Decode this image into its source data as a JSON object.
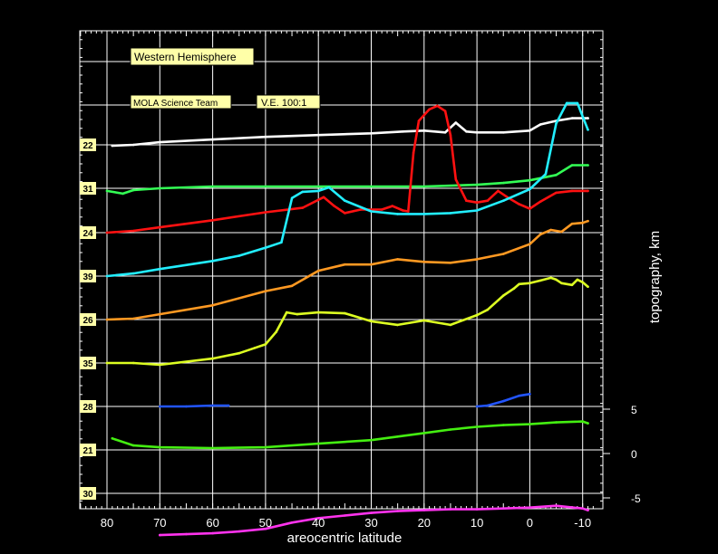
{
  "chart_data": {
    "type": "line",
    "title": "Western Hemisphere",
    "annotations": [
      "MOLA Science Team",
      "V.E. 100:1"
    ],
    "xlabel": "areocentric latitude",
    "ylabel": "topography, km",
    "xlim": [
      85,
      -12
    ],
    "x_ticks": [
      "80",
      "70",
      "60",
      "50",
      "40",
      "30",
      "20",
      "10",
      "0",
      "-10"
    ],
    "y_ticks": [
      "5",
      "0",
      "-5"
    ],
    "grid": true,
    "series": [
      {
        "name": "22",
        "color": "#ffffff",
        "x": [
          79,
          75,
          70,
          60,
          50,
          40,
          30,
          24,
          20,
          16,
          14,
          12,
          10,
          5,
          0,
          -2,
          -5,
          -8,
          -11
        ],
        "y": [
          -0.1,
          0.0,
          0.3,
          0.6,
          0.9,
          1.1,
          1.3,
          1.5,
          1.6,
          1.4,
          2.5,
          1.5,
          1.4,
          1.4,
          1.6,
          2.3,
          2.7,
          3.0,
          3.0
        ]
      },
      {
        "name": "31",
        "color": "#33ff55",
        "x": [
          80,
          77,
          75,
          70,
          60,
          50,
          40,
          30,
          20,
          10,
          5,
          0,
          -5,
          -8,
          -11
        ],
        "y": [
          -0.3,
          -0.6,
          -0.2,
          0.0,
          0.2,
          0.2,
          0.2,
          0.2,
          0.2,
          0.4,
          0.6,
          0.9,
          1.5,
          2.6,
          2.6
        ]
      },
      {
        "name": "24",
        "color": "#ff1111",
        "x": [
          80,
          75,
          70,
          60,
          50,
          43,
          39,
          37,
          35,
          32,
          30,
          28,
          26,
          24,
          23,
          22,
          21,
          19,
          17.5,
          16,
          15,
          14,
          12,
          10,
          8,
          6,
          4,
          2,
          0,
          -2,
          -5,
          -8,
          -11
        ],
        "y": [
          0.0,
          0.2,
          0.6,
          1.4,
          2.3,
          2.8,
          4.0,
          3.0,
          2.2,
          2.6,
          2.6,
          2.6,
          3.0,
          2.5,
          2.4,
          9.0,
          12.6,
          13.9,
          14.3,
          13.7,
          11.0,
          6.0,
          3.6,
          3.4,
          3.6,
          4.7,
          3.9,
          3.2,
          2.7,
          3.5,
          4.5,
          4.7,
          4.7
        ]
      },
      {
        "name": "39",
        "color": "#22eeff",
        "x": [
          80,
          75,
          70,
          60,
          55,
          50,
          47,
          45,
          43,
          40,
          38,
          35,
          30,
          25,
          20,
          15,
          10,
          5,
          0,
          -3,
          -5,
          -7,
          -9,
          -11
        ],
        "y": [
          0.0,
          0.3,
          0.8,
          1.7,
          2.3,
          3.2,
          3.8,
          8.8,
          9.5,
          9.6,
          10.0,
          8.5,
          7.3,
          7.0,
          7.0,
          7.1,
          7.4,
          8.5,
          9.8,
          11.5,
          17.2,
          19.5,
          19.5,
          16.5
        ]
      },
      {
        "name": "26",
        "color": "#ff9922",
        "x": [
          80,
          75,
          70,
          60,
          50,
          45,
          40,
          35,
          30,
          25,
          20,
          15,
          10,
          5,
          0,
          -2,
          -4,
          -6,
          -8,
          -10,
          -11
        ],
        "y": [
          0.0,
          0.1,
          0.6,
          1.6,
          3.2,
          3.8,
          5.5,
          6.2,
          6.2,
          6.8,
          6.5,
          6.4,
          6.8,
          7.4,
          8.5,
          9.6,
          10.1,
          9.9,
          10.8,
          10.9,
          11.1
        ]
      },
      {
        "name": "35",
        "color": "#ddff22",
        "x": [
          80,
          75,
          70,
          60,
          55,
          52,
          50,
          48,
          46,
          44,
          40,
          35,
          30,
          25,
          20,
          15,
          10,
          8,
          5,
          3,
          2,
          0,
          -2,
          -4,
          -5,
          -6,
          -8,
          -9,
          -10,
          -11
        ],
        "y": [
          0.0,
          0.0,
          -0.2,
          0.5,
          1.1,
          1.7,
          2.1,
          3.5,
          5.7,
          5.5,
          5.7,
          5.6,
          4.7,
          4.3,
          4.8,
          4.3,
          5.4,
          6.0,
          7.6,
          8.4,
          8.9,
          9.0,
          9.3,
          9.6,
          9.4,
          9.0,
          8.8,
          9.4,
          9.1,
          8.6
        ]
      },
      {
        "name": "28",
        "color": "#2255ff",
        "x": [
          10,
          8,
          5,
          2,
          0,
          70,
          65,
          60,
          57
        ],
        "y": [
          0.0,
          0.1,
          0.6,
          1.2,
          1.4,
          0.0,
          0.0,
          0.1,
          0.1
        ]
      },
      {
        "name": "21",
        "color": "#44ee11",
        "x": [
          79,
          75,
          70,
          60,
          50,
          40,
          30,
          25,
          20,
          15,
          10,
          5,
          0,
          -5,
          -10,
          -11
        ],
        "y": [
          1.3,
          0.5,
          0.3,
          0.2,
          0.3,
          0.7,
          1.1,
          1.5,
          1.9,
          2.3,
          2.6,
          2.8,
          2.9,
          3.1,
          3.2,
          3.0
        ]
      },
      {
        "name": "30",
        "color": "#ff33ee",
        "x": [
          70,
          65,
          60,
          55,
          50,
          45,
          40,
          35,
          30,
          25,
          20,
          15,
          10,
          5,
          0,
          -5,
          -10,
          -11
        ],
        "y": [
          -4.7,
          -4.6,
          -4.5,
          -4.3,
          -4.0,
          -3.3,
          -2.8,
          -2.5,
          -2.2,
          -2.0,
          -1.9,
          -1.8,
          -1.8,
          -1.7,
          -1.6,
          -1.4,
          -1.7,
          -1.9
        ]
      }
    ]
  }
}
